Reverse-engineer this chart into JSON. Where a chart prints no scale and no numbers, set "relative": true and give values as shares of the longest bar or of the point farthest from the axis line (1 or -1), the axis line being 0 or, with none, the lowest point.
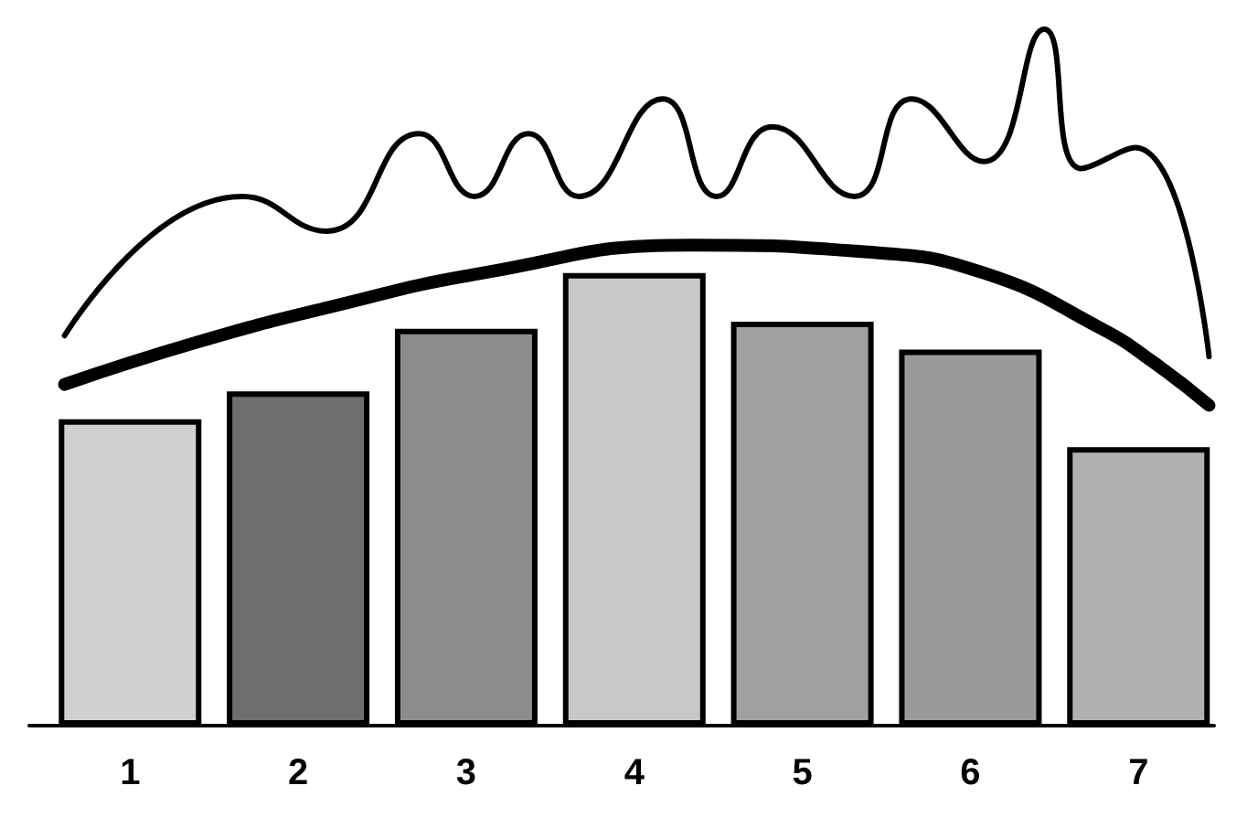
{
  "chart_data": {
    "type": "bar",
    "relative": true,
    "x": [
      1,
      2,
      3,
      4,
      5,
      6,
      7
    ],
    "xlim": [
      0.4,
      7.45
    ],
    "xticks": [
      1,
      2,
      3,
      4,
      5,
      6,
      7
    ],
    "grid": false,
    "marker": "none",
    "line_style": "solid",
    "series": [
      {
        "color": "#999999",
        "colors": [
          "#d0d0d0",
          "#6e6e6e",
          "#8c8c8c",
          "#c8c8c8",
          "#a0a0a0",
          "#9a9a9a",
          "#b0b0b0"
        ],
        "values": [
          0.44,
          0.48,
          0.57,
          0.65,
          0.58,
          0.54,
          0.4
        ]
      },
      {
        "type": "line",
        "color": "#000000",
        "x": [
          0.61,
          1.39,
          2.17,
          3.1,
          4.33,
          5.39,
          6.08,
          6.78,
          7.1,
          7.42
        ],
        "values": [
          0.49,
          0.55,
          0.6,
          0.65,
          0.69,
          0.68,
          0.65,
          0.57,
          0.52,
          0.46
        ]
      },
      {
        "type": "line",
        "color": "#000000",
        "x": [
          0.61,
          1.67,
          2.17,
          2.72,
          3.05,
          3.37,
          3.67,
          4.17,
          4.49,
          4.82,
          5.31,
          5.65,
          6.08,
          6.44,
          6.66,
          6.98,
          7.42
        ],
        "values": [
          0.56,
          0.76,
          0.71,
          0.85,
          0.76,
          0.85,
          0.76,
          0.9,
          0.76,
          0.86,
          0.76,
          0.9,
          0.81,
          1,
          0.8,
          0.83,
          0.53
        ]
      }
    ]
  }
}
